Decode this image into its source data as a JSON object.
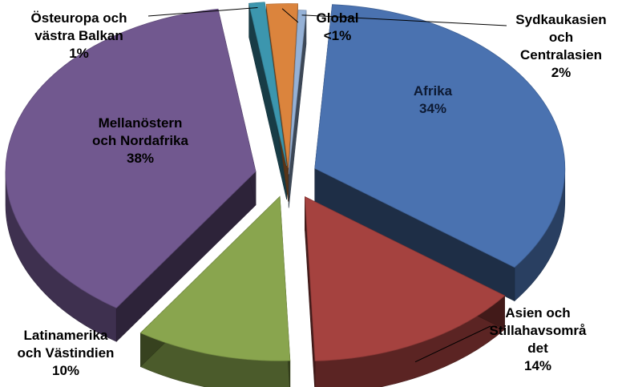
{
  "chart_data": {
    "type": "pie",
    "title": "",
    "style": "3d-exploded",
    "slices": [
      {
        "label_lines": [
          "Afrika"
        ],
        "value_text": "34%",
        "value": 34,
        "color": "#4a72b0"
      },
      {
        "label_lines": [
          "Asien och",
          "Stillahavsområ",
          "det"
        ],
        "value_text": "14%",
        "value": 14,
        "color": "#a5423f"
      },
      {
        "label_lines": [
          "Latinamerika",
          "och Västindien"
        ],
        "value_text": "10%",
        "value": 10,
        "color": "#89a54e"
      },
      {
        "label_lines": [
          "Mellanöstern",
          "och Nordafrika"
        ],
        "value_text": "38%",
        "value": 38,
        "color": "#71588f"
      },
      {
        "label_lines": [
          "Östeuropa och",
          "västra Balkan"
        ],
        "value_text": "1%",
        "value": 1,
        "color": "#3c96ae"
      },
      {
        "label_lines": [
          "Sydkaukasien",
          "och",
          "Centralasien"
        ],
        "value_text": "2%",
        "value": 2,
        "color": "#db843d"
      },
      {
        "label_lines": [
          "Global"
        ],
        "value_text": "<1%",
        "value": 0.5,
        "color": "#95b1d6"
      }
    ]
  }
}
